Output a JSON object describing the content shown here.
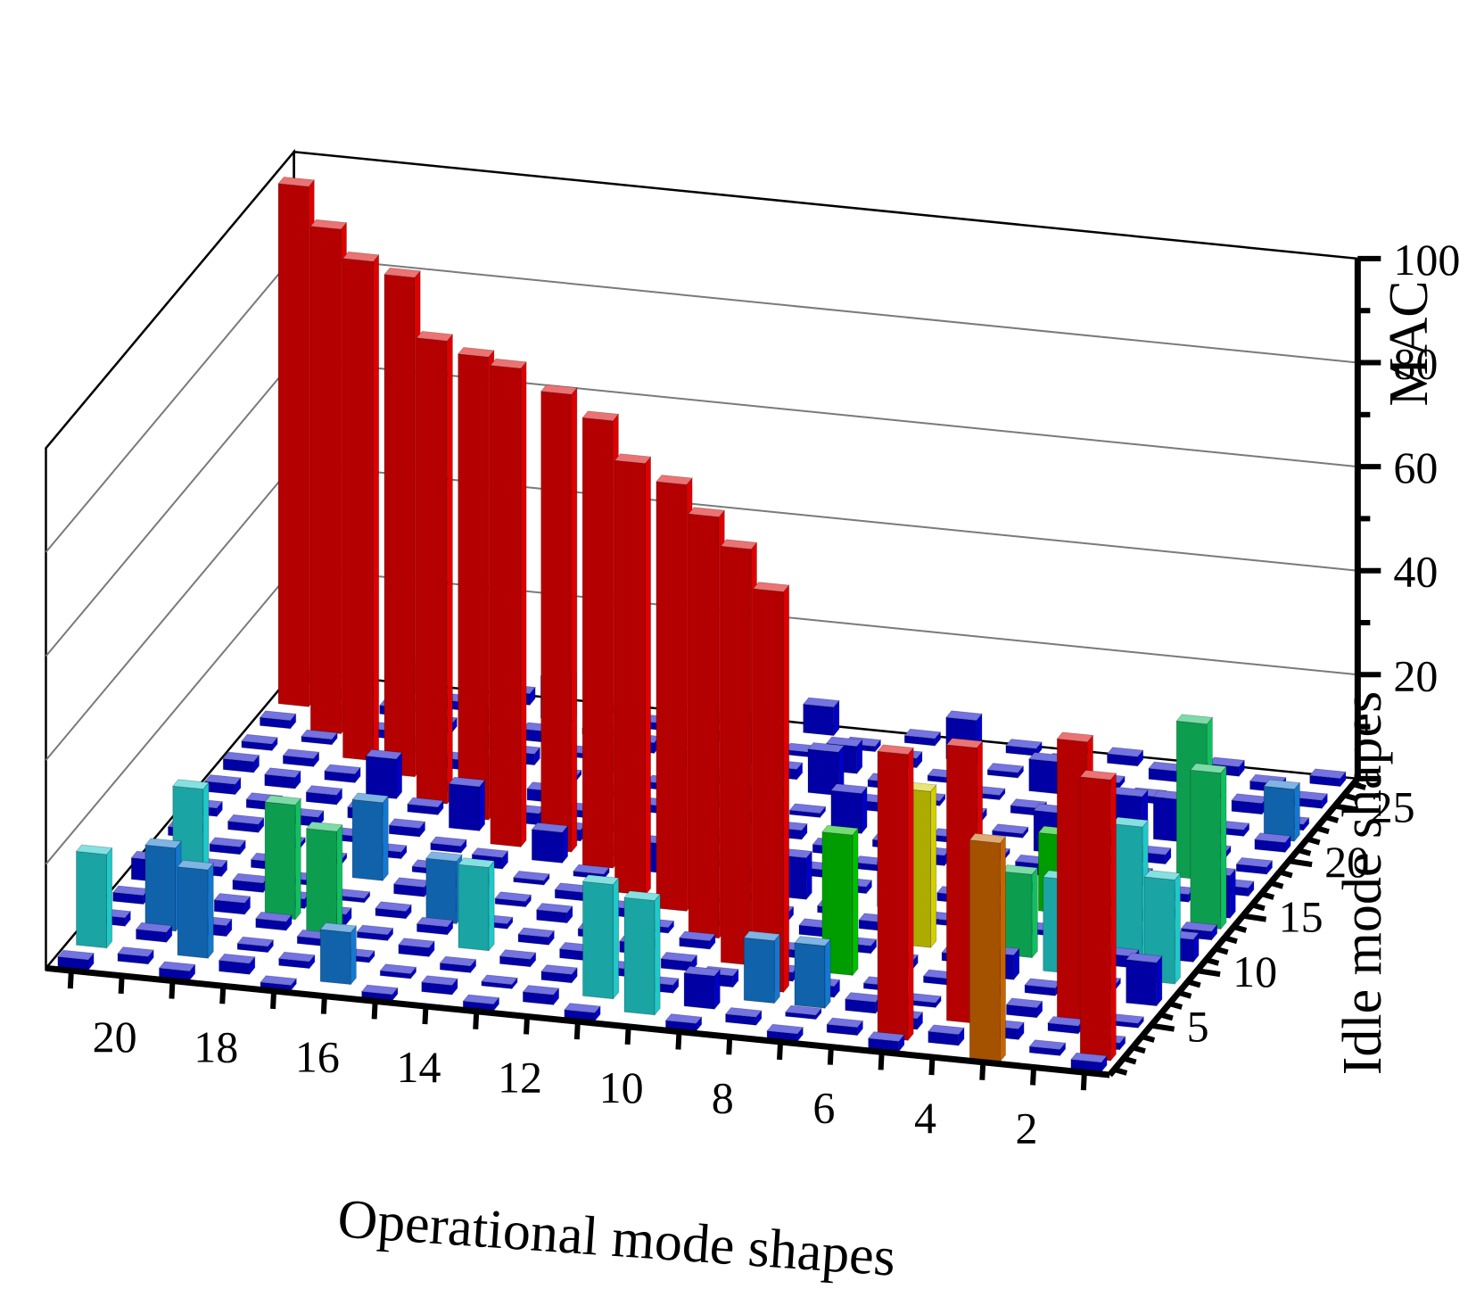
{
  "chart_data": {
    "type": "3d-bar",
    "title": "",
    "xlabel": "Operational mode shapes",
    "ylabel": "Idle mode shapes",
    "zlabel": "MAC",
    "x_range": [
      1,
      21
    ],
    "y_range": [
      1,
      27
    ],
    "zlim": [
      0,
      100
    ],
    "x_ticks": [
      "2",
      "4",
      "6",
      "8",
      "10",
      "12",
      "14",
      "16",
      "18",
      "20"
    ],
    "y_ticks": [
      "5",
      "10",
      "15",
      "20",
      "25"
    ],
    "z_ticks": [
      "20",
      "40",
      "60",
      "80",
      "100"
    ],
    "grid": "z-gridlines on back walls",
    "colors": {
      "red": "#dd0000",
      "green": "#10c060",
      "bright_green": "#00c000",
      "cyan": "#20c8c8",
      "blue": "#1478d0",
      "dark_blue": "#0000c8",
      "yellow": "#d4d000",
      "orange": "#c86400"
    },
    "dominant_bars": [
      {
        "x": 1,
        "y": 2,
        "value": 54,
        "color": "red"
      },
      {
        "x": 2,
        "y": 5,
        "value": 54,
        "color": "red"
      },
      {
        "x": 3,
        "y": 1,
        "value": 42,
        "color": "orange"
      },
      {
        "x": 4,
        "y": 4,
        "value": 53,
        "color": "red"
      },
      {
        "x": 5,
        "y": 2,
        "value": 55,
        "color": "red"
      },
      {
        "x": 6,
        "y": 10,
        "value": 30,
        "color": "yellow"
      },
      {
        "x": 7,
        "y": 7,
        "value": 27,
        "color": "bright_green"
      },
      {
        "x": 8,
        "y": 5,
        "value": 77,
        "color": "red"
      },
      {
        "x": 9,
        "y": 7,
        "value": 80,
        "color": "red"
      },
      {
        "x": 10,
        "y": 9,
        "value": 81,
        "color": "red"
      },
      {
        "x": 11,
        "y": 11,
        "value": 82,
        "color": "red"
      },
      {
        "x": 12,
        "y": 12,
        "value": 83,
        "color": "red"
      },
      {
        "x": 13,
        "y": 14,
        "value": 86,
        "color": "red"
      },
      {
        "x": 14,
        "y": 15,
        "value": 88,
        "color": "red"
      },
      {
        "x": 15,
        "y": 15,
        "value": 92,
        "color": "red"
      },
      {
        "x": 16,
        "y": 17,
        "value": 89,
        "color": "red"
      },
      {
        "x": 17,
        "y": 18,
        "value": 89,
        "color": "red"
      },
      {
        "x": 18,
        "y": 20,
        "value": 96,
        "color": "red"
      },
      {
        "x": 19,
        "y": 21,
        "value": 96,
        "color": "red"
      },
      {
        "x": 20,
        "y": 23,
        "value": 97,
        "color": "red"
      },
      {
        "x": 21,
        "y": 25,
        "value": 100,
        "color": "red"
      }
    ],
    "secondary_bars": [
      {
        "x": 1,
        "y": 14,
        "value": 30,
        "color": "green"
      },
      {
        "x": 2,
        "y": 18,
        "value": 30,
        "color": "green"
      },
      {
        "x": 1,
        "y": 9,
        "value": 20,
        "color": "cyan"
      },
      {
        "x": 2,
        "y": 11,
        "value": 25,
        "color": "cyan"
      },
      {
        "x": 1,
        "y": 22,
        "value": 10,
        "color": "blue"
      },
      {
        "x": 3,
        "y": 9,
        "value": 18,
        "color": "cyan"
      },
      {
        "x": 4,
        "y": 10,
        "value": 16,
        "color": "green"
      },
      {
        "x": 4,
        "y": 14,
        "value": 15,
        "color": "bright_green"
      },
      {
        "x": 10,
        "y": 2,
        "value": 22,
        "color": "cyan"
      },
      {
        "x": 11,
        "y": 3,
        "value": 22,
        "color": "cyan"
      },
      {
        "x": 14,
        "y": 6,
        "value": 16,
        "color": "cyan"
      },
      {
        "x": 17,
        "y": 11,
        "value": 15,
        "color": "blue"
      },
      {
        "x": 20,
        "y": 8,
        "value": 21,
        "color": "cyan"
      },
      {
        "x": 18,
        "y": 7,
        "value": 22,
        "color": "green"
      },
      {
        "x": 17,
        "y": 6,
        "value": 20,
        "color": "green"
      },
      {
        "x": 21,
        "y": 3,
        "value": 18,
        "color": "cyan"
      },
      {
        "x": 19,
        "y": 3,
        "value": 17,
        "color": "blue"
      },
      {
        "x": 20,
        "y": 5,
        "value": 16,
        "color": "blue"
      },
      {
        "x": 7,
        "y": 4,
        "value": 12,
        "color": "blue"
      },
      {
        "x": 8,
        "y": 4,
        "value": 12,
        "color": "blue"
      },
      {
        "x": 15,
        "y": 8,
        "value": 12,
        "color": "blue"
      },
      {
        "x": 16,
        "y": 2,
        "value": 10,
        "color": "blue"
      }
    ]
  }
}
